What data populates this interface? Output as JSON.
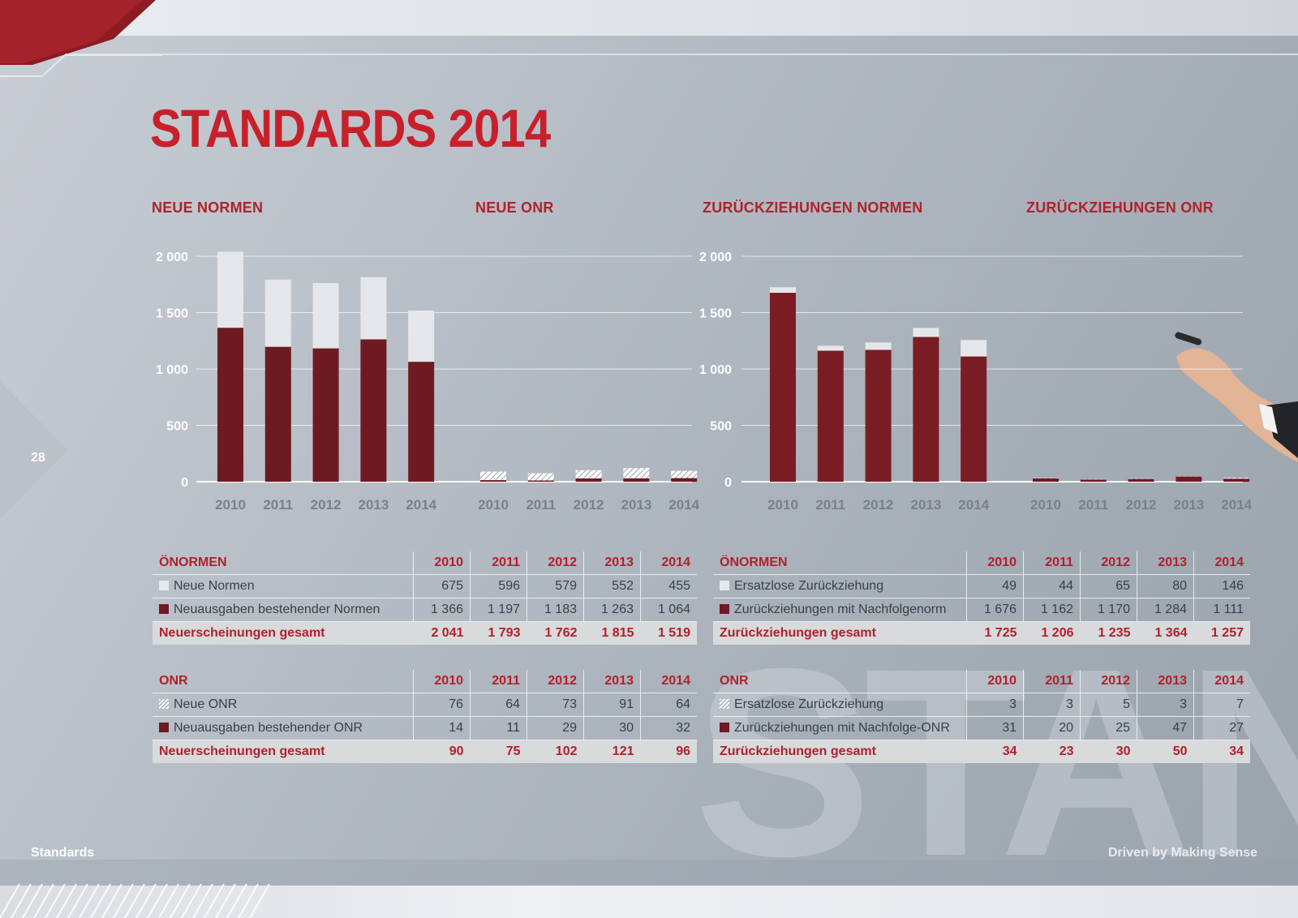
{
  "page": {
    "title": "STANDARDS 2014",
    "page_number": "28",
    "footer_left": "Standards",
    "footer_right": "Driven by Making Sense",
    "watermark": "STAND",
    "colors": {
      "accent": "#c8202a",
      "bar_dark": "#6e1a22",
      "bar_dark2": "#7a1c24",
      "bar_light": "#e6e7ea"
    }
  },
  "chart_titles": [
    "NEUE NORMEN",
    "NEUE ONR",
    "ZURÜCKZIEHUNGEN NORMEN",
    "ZURÜCKZIEHUNGEN ONR"
  ],
  "chart_data": [
    {
      "type": "bar",
      "stacked": true,
      "title": "NEUE NORMEN",
      "categories": [
        "2010",
        "2011",
        "2012",
        "2013",
        "2014"
      ],
      "series": [
        {
          "name": "Neuausgaben bestehender Normen",
          "values": [
            1366,
            1197,
            1183,
            1263,
            1064
          ],
          "style": "dark"
        },
        {
          "name": "Neue Normen",
          "values": [
            675,
            596,
            579,
            552,
            455
          ],
          "style": "light"
        }
      ],
      "ylim": [
        0,
        2000
      ],
      "yticks": [
        "0",
        "500",
        "1 000",
        "1 500",
        "2 000"
      ],
      "grid": true
    },
    {
      "type": "bar",
      "stacked": true,
      "title": "NEUE ONR",
      "categories": [
        "2010",
        "2011",
        "2012",
        "2013",
        "2014"
      ],
      "series": [
        {
          "name": "Neuausgaben bestehender ONR",
          "values": [
            14,
            11,
            29,
            30,
            32
          ],
          "style": "dark"
        },
        {
          "name": "Neue ONR",
          "values": [
            76,
            64,
            73,
            91,
            64
          ],
          "style": "hatch"
        }
      ],
      "ylim": [
        0,
        2000
      ],
      "grid": true
    },
    {
      "type": "bar",
      "stacked": true,
      "title": "ZURÜCKZIEHUNGEN NORMEN",
      "categories": [
        "2010",
        "2011",
        "2012",
        "2013",
        "2014"
      ],
      "series": [
        {
          "name": "Zurückziehungen mit Nachfolgenorm",
          "values": [
            1676,
            1162,
            1170,
            1284,
            1111
          ],
          "style": "dark"
        },
        {
          "name": "Ersatzlose Zurückziehung",
          "values": [
            49,
            44,
            65,
            80,
            146
          ],
          "style": "light"
        }
      ],
      "ylim": [
        0,
        2000
      ],
      "yticks": [
        "0",
        "500",
        "1 000",
        "1 500",
        "2 000"
      ],
      "grid": true
    },
    {
      "type": "bar",
      "stacked": true,
      "title": "ZURÜCKZIEHUNGEN ONR",
      "categories": [
        "2010",
        "2011",
        "2012",
        "2013",
        "2014"
      ],
      "series": [
        {
          "name": "Zurückziehungen mit Nachfolge-ONR",
          "values": [
            31,
            20,
            25,
            47,
            27
          ],
          "style": "dark"
        },
        {
          "name": "Ersatzlose Zurückziehung",
          "values": [
            3,
            3,
            5,
            3,
            7
          ],
          "style": "hatch"
        }
      ],
      "ylim": [
        0,
        2000
      ],
      "grid": true
    }
  ],
  "tables": [
    {
      "header": "ÖNORMEN",
      "years": [
        "2010",
        "2011",
        "2012",
        "2013",
        "2014"
      ],
      "rows": [
        {
          "swatch": "light",
          "label": "Neue Normen",
          "values": [
            "675",
            "596",
            "579",
            "552",
            "455"
          ]
        },
        {
          "swatch": "dark",
          "label": "Neuausgaben bestehender Normen",
          "values": [
            "1 366",
            "1 197",
            "1 183",
            "1 263",
            "1 064"
          ]
        }
      ],
      "total": {
        "label": "Neuerscheinungen gesamt",
        "values": [
          "2 041",
          "1 793",
          "1 762",
          "1 815",
          "1 519"
        ]
      }
    },
    {
      "header": "ÖNORMEN",
      "years": [
        "2010",
        "2011",
        "2012",
        "2013",
        "2014"
      ],
      "rows": [
        {
          "swatch": "light",
          "label": "Ersatzlose Zurückziehung",
          "values": [
            "49",
            "44",
            "65",
            "80",
            "146"
          ]
        },
        {
          "swatch": "dark",
          "label": "Zurückziehungen mit Nachfolgenorm",
          "values": [
            "1 676",
            "1 162",
            "1 170",
            "1 284",
            "1 111"
          ]
        }
      ],
      "total": {
        "label": "Zurückziehungen gesamt",
        "values": [
          "1 725",
          "1 206",
          "1 235",
          "1 364",
          "1 257"
        ]
      }
    },
    {
      "header": "ONR",
      "years": [
        "2010",
        "2011",
        "2012",
        "2013",
        "2014"
      ],
      "rows": [
        {
          "swatch": "hatch",
          "label": "Neue ONR",
          "values": [
            "76",
            "64",
            "73",
            "91",
            "64"
          ]
        },
        {
          "swatch": "dark",
          "label": "Neuausgaben bestehender ONR",
          "values": [
            "14",
            "11",
            "29",
            "30",
            "32"
          ]
        }
      ],
      "total": {
        "label": "Neuerscheinungen gesamt",
        "values": [
          "90",
          "75",
          "102",
          "121",
          "96"
        ]
      }
    },
    {
      "header": "ONR",
      "years": [
        "2010",
        "2011",
        "2012",
        "2013",
        "2014"
      ],
      "rows": [
        {
          "swatch": "hatch",
          "label": "Ersatzlose Zurückziehung",
          "values": [
            "3",
            "3",
            "5",
            "3",
            "7"
          ]
        },
        {
          "swatch": "dark",
          "label": "Zurückziehungen mit Nachfolge-ONR",
          "values": [
            "31",
            "20",
            "25",
            "47",
            "27"
          ]
        }
      ],
      "total": {
        "label": "Zurückziehungen gesamt",
        "values": [
          "34",
          "23",
          "30",
          "50",
          "34"
        ]
      }
    }
  ]
}
